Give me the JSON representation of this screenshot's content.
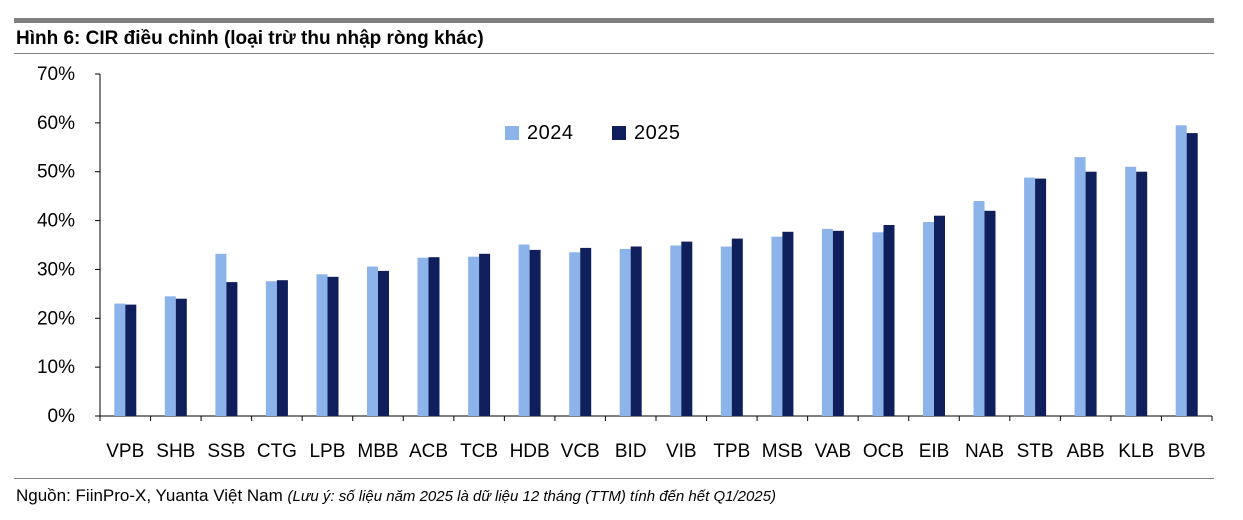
{
  "title": "Hình 6: CIR điều chỉnh (loại trừ thu nhập ròng khác)",
  "source": {
    "label": "Nguồn: FiinPro-X, Yuanta Việt Nam",
    "note": "(Lưu ý: số liệu năm 2025 là dữ liệu 12 tháng (TTM) tính đến hết Q1/2025)"
  },
  "colors": {
    "series_2024": "#8DB3EB",
    "series_2025": "#0E1F5B"
  },
  "chart_data": {
    "type": "bar",
    "title": "Hình 6: CIR điều chỉnh (loại trừ thu nhập ròng khác)",
    "xlabel": "",
    "ylabel": "",
    "ylim": [
      0,
      70
    ],
    "yticks": [
      "0%",
      "10%",
      "20%",
      "30%",
      "40%",
      "50%",
      "60%",
      "70%"
    ],
    "legend_position": "top-center",
    "grid": false,
    "categories": [
      "VPB",
      "SHB",
      "SSB",
      "CTG",
      "LPB",
      "MBB",
      "ACB",
      "TCB",
      "HDB",
      "VCB",
      "BID",
      "VIB",
      "TPB",
      "MSB",
      "VAB",
      "OCB",
      "EIB",
      "NAB",
      "STB",
      "ABB",
      "KLB",
      "BVB"
    ],
    "series": [
      {
        "name": "2024",
        "values": [
          23.0,
          24.5,
          33.2,
          27.6,
          29.0,
          30.6,
          32.4,
          32.6,
          35.1,
          33.5,
          34.2,
          34.9,
          34.7,
          36.7,
          38.3,
          37.6,
          39.7,
          44.0,
          48.8,
          53.0,
          51.0,
          59.5
        ]
      },
      {
        "name": "2025",
        "values": [
          22.8,
          24.0,
          27.4,
          27.8,
          28.5,
          29.7,
          32.5,
          33.2,
          34.0,
          34.4,
          34.7,
          35.7,
          36.3,
          37.7,
          37.9,
          39.1,
          41.0,
          42.0,
          48.6,
          50.0,
          50.0,
          57.9
        ]
      }
    ]
  }
}
